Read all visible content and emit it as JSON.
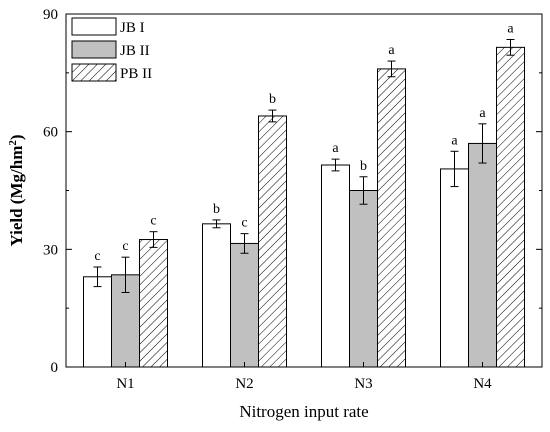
{
  "chart_data": {
    "type": "bar",
    "title": "",
    "xlabel": "Nitrogen input rate",
    "ylabel_main": "Yield (Mg/hm",
    "ylabel_sup": "2",
    "ylabel_close": ")",
    "ylim": [
      0,
      90
    ],
    "yticks": [
      "0",
      "30",
      "60",
      "90"
    ],
    "ytick_values": [
      0,
      30,
      60,
      90
    ],
    "minor_ytick_values": [
      15,
      45,
      75
    ],
    "grid": false,
    "legend_position": "top-left",
    "categories": [
      "N1",
      "N2",
      "N3",
      "N4"
    ],
    "series": [
      {
        "name": "JB I",
        "fill": "#ffffff",
        "pattern": "none",
        "values": [
          23.0,
          36.5,
          51.5,
          50.5
        ],
        "errors": [
          2.5,
          1.0,
          1.5,
          4.5
        ],
        "labels": [
          "c",
          "b",
          "a",
          "a"
        ]
      },
      {
        "name": "JB II",
        "fill": "#c0c0c0",
        "pattern": "none",
        "values": [
          23.5,
          31.5,
          45.0,
          57.0
        ],
        "errors": [
          4.5,
          2.5,
          3.5,
          5.0
        ],
        "labels": [
          "c",
          "c",
          "b",
          "a"
        ]
      },
      {
        "name": "PB II",
        "fill": "#ffffff",
        "pattern": "diagonal-hatch",
        "values": [
          32.5,
          64.0,
          76.0,
          81.5
        ],
        "errors": [
          2.0,
          1.5,
          2.0,
          2.0
        ],
        "labels": [
          "c",
          "b",
          "a",
          "a"
        ]
      }
    ]
  }
}
